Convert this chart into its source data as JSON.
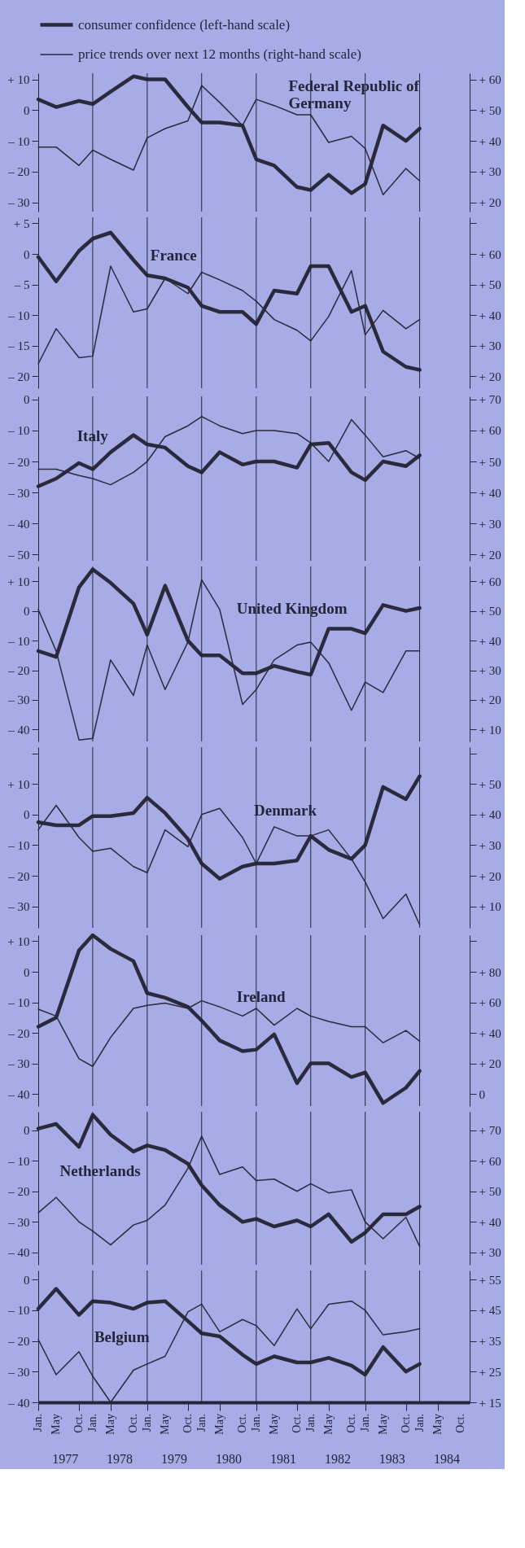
{
  "chart_data": [
    {
      "type": "line",
      "title": "Federal Republic of Germany",
      "legend": "top",
      "tick_labels": "y",
      "x": [
        "1977-01",
        "1977-05",
        "1977-10",
        "1978-01",
        "1978-05",
        "1978-10",
        "1979-01",
        "1979-05",
        "1979-10",
        "1980-01",
        "1980-05",
        "1980-10",
        "1981-01",
        "1981-05",
        "1981-10",
        "1982-01",
        "1982-05",
        "1982-10",
        "1983-01",
        "1983-05",
        "1983-10",
        "1984-01"
      ],
      "series": [
        {
          "name": "consumer confidence (left-hand scale)",
          "color": "#2a2a3c",
          "values": [
            3.5,
            1,
            3,
            2,
            6,
            11,
            10,
            10,
            1,
            -4,
            -4,
            -5,
            -16,
            -18,
            -25,
            -26,
            -21,
            -27,
            -24,
            -5,
            -10,
            -6
          ]
        },
        {
          "name": "price trends over next 12 months (right-hand scale)",
          "color": "#2a2a3c",
          "axis": "y2",
          "values": [
            38,
            38,
            32,
            37,
            34,
            30.5,
            41,
            44,
            46.5,
            58,
            52.5,
            45,
            53.5,
            51.5,
            48.5,
            48.5,
            39.5,
            41.5,
            37.5,
            22.5,
            31,
            27
          ]
        }
      ],
      "xlim": [
        "1977-01",
        "1984-12"
      ],
      "ylim": [
        -33,
        12
      ],
      "y2lim": [
        17,
        62
      ],
      "yticks": [
        {
          "value": 10,
          "label": "+ 10"
        },
        0,
        {
          "value": -10,
          "label": "– 10"
        },
        {
          "value": -20,
          "label": "– 20"
        },
        {
          "value": -30,
          "label": "– 30"
        }
      ],
      "y2ticks": [
        {
          "value": 60,
          "label": "+ 60"
        },
        {
          "value": 50,
          "label": "+ 50"
        },
        {
          "value": 40,
          "label": "+ 40"
        },
        {
          "value": 30,
          "label": "+ 30"
        },
        {
          "value": 20,
          "label": "+ 20"
        }
      ],
      "ref_lines": [
        {
          "axis": "x",
          "value": "1978-01"
        },
        {
          "axis": "x",
          "value": "1979-01"
        },
        {
          "axis": "x",
          "value": "1980-01"
        },
        {
          "axis": "x",
          "value": "1981-01"
        },
        {
          "axis": "x",
          "value": "1982-01"
        },
        {
          "axis": "x",
          "value": "1983-01"
        },
        {
          "axis": "x",
          "value": "1984-01"
        }
      ]
    },
    {
      "type": "line",
      "title": "France",
      "tick_labels": "y",
      "x": [
        "1977-01",
        "1977-05",
        "1977-10",
        "1978-01",
        "1978-05",
        "1978-10",
        "1979-01",
        "1979-05",
        "1979-10",
        "1980-01",
        "1980-05",
        "1980-10",
        "1981-01",
        "1981-05",
        "1981-10",
        "1982-01",
        "1982-05",
        "1982-10",
        "1983-01",
        "1983-05",
        "1983-10",
        "1984-01"
      ],
      "series": [
        {
          "color": "#2a2a3c",
          "values": [
            -0.5,
            -4.5,
            0.5,
            2.5,
            3.5,
            -1,
            -3.5,
            -4,
            -5.5,
            -8.5,
            -9.5,
            -9.5,
            -11.5,
            -6,
            -6.5,
            -2,
            -2,
            -9.5,
            -8.5,
            -16,
            -18.5,
            -19
          ]
        },
        {
          "color": "#2a2a3c",
          "axis": "y2",
          "values": [
            24,
            35.5,
            26,
            26.5,
            56,
            41,
            42,
            52,
            47,
            54,
            51.5,
            48,
            44.5,
            38.5,
            35,
            31.5,
            39.5,
            54.5,
            33.5,
            41.5,
            35.5,
            38.5
          ]
        }
      ],
      "xlim": [
        "1977-01",
        "1984-12"
      ],
      "ylim": [
        -22,
        6
      ],
      "y2lim": [
        16,
        72
      ],
      "yticks": [
        {
          "value": 5,
          "label": "+ 5"
        },
        0,
        {
          "value": -5,
          "label": "– 5"
        },
        {
          "value": -10,
          "label": "– 10"
        },
        {
          "value": -15,
          "label": "– 15"
        },
        {
          "value": -20,
          "label": "– 20"
        }
      ],
      "y2ticks": [
        {
          "value": 70,
          "label": null
        },
        {
          "value": 60,
          "label": "+ 60"
        },
        {
          "value": 50,
          "label": "+ 50"
        },
        {
          "value": 40,
          "label": "+ 40"
        },
        {
          "value": 30,
          "label": "+ 30"
        },
        {
          "value": 20,
          "label": "+ 20"
        }
      ],
      "ref_lines": [
        {
          "axis": "x",
          "value": "1978-01"
        },
        {
          "axis": "x",
          "value": "1979-01"
        },
        {
          "axis": "x",
          "value": "1980-01"
        },
        {
          "axis": "x",
          "value": "1981-01"
        },
        {
          "axis": "x",
          "value": "1982-01"
        },
        {
          "axis": "x",
          "value": "1983-01"
        },
        {
          "axis": "x",
          "value": "1984-01"
        }
      ]
    },
    {
      "type": "line",
      "title": "Italy",
      "tick_labels": "y",
      "x": [
        "1977-01",
        "1977-05",
        "1977-10",
        "1978-01",
        "1978-05",
        "1978-10",
        "1979-01",
        "1979-05",
        "1979-10",
        "1980-01",
        "1980-05",
        "1980-10",
        "1981-01",
        "1981-05",
        "1981-10",
        "1982-01",
        "1982-05",
        "1982-10",
        "1983-01",
        "1983-05",
        "1983-10",
        "1984-01"
      ],
      "series": [
        {
          "color": "#2a2a3c",
          "values": [
            -28,
            -25.5,
            -20.5,
            -22.5,
            -17,
            -11.5,
            -14.5,
            -15.5,
            -21.5,
            -23.5,
            -17,
            -21,
            -20,
            -20,
            -22,
            -14.5,
            -14,
            -23.5,
            -26,
            -20,
            -21.5,
            -18
          ]
        },
        {
          "color": "#2a2a3c",
          "axis": "y2",
          "values": [
            47.5,
            47.5,
            45.5,
            44.5,
            42.5,
            46.5,
            50,
            58,
            61.5,
            64.5,
            61.5,
            59,
            60,
            60,
            59,
            56,
            50,
            63.5,
            58.5,
            51.5,
            53.5,
            51
          ]
        }
      ],
      "xlim": [
        "1977-01",
        "1984-12"
      ],
      "ylim": [
        -52,
        1
      ],
      "y2lim": [
        18,
        71
      ],
      "yticks": [
        0,
        {
          "value": -10,
          "label": "– 10"
        },
        {
          "value": -20,
          "label": "– 20"
        },
        {
          "value": -30,
          "label": "– 30"
        },
        {
          "value": -40,
          "label": "– 40"
        },
        {
          "value": -50,
          "label": "– 50"
        }
      ],
      "y2ticks": [
        {
          "value": 70,
          "label": "+ 70"
        },
        {
          "value": 60,
          "label": "+ 60"
        },
        {
          "value": 50,
          "label": "+ 50"
        },
        {
          "value": 40,
          "label": "+ 40"
        },
        {
          "value": 30,
          "label": "+ 30"
        },
        {
          "value": 20,
          "label": "+ 20"
        }
      ],
      "ref_lines": [
        {
          "axis": "x",
          "value": "1978-01"
        },
        {
          "axis": "x",
          "value": "1979-01"
        },
        {
          "axis": "x",
          "value": "1980-01"
        },
        {
          "axis": "x",
          "value": "1981-01"
        },
        {
          "axis": "x",
          "value": "1982-01"
        },
        {
          "axis": "x",
          "value": "1983-01"
        },
        {
          "axis": "x",
          "value": "1984-01"
        }
      ]
    },
    {
      "type": "line",
      "title": "United Kingdom",
      "tick_labels": "y",
      "x": [
        "1977-01",
        "1977-05",
        "1977-10",
        "1978-01",
        "1978-05",
        "1978-10",
        "1979-01",
        "1979-05",
        "1979-10",
        "1980-01",
        "1980-05",
        "1980-10",
        "1981-01",
        "1981-05",
        "1981-10",
        "1982-01",
        "1982-05",
        "1982-10",
        "1983-01",
        "1983-05",
        "1983-10",
        "1984-01"
      ],
      "series": [
        {
          "color": "#2a2a3c",
          "values": [
            -13.5,
            -15.5,
            8,
            14,
            9.5,
            2.5,
            -8,
            8.5,
            -10,
            -15,
            -15,
            -21,
            -21,
            -18.5,
            -20.5,
            -21.5,
            -6,
            -6,
            -7.5,
            2,
            0,
            1
          ]
        },
        {
          "color": "#2a2a3c",
          "axis": "y2",
          "values": [
            50.5,
            36.5,
            6.5,
            7,
            33.5,
            21.5,
            38.5,
            23.5,
            39.5,
            60.5,
            50.5,
            18.5,
            23.5,
            33.5,
            38.5,
            39.5,
            32.5,
            16.5,
            26,
            22.5,
            36.5,
            36.5
          ]
        }
      ],
      "xlim": [
        "1977-01",
        "1984-12"
      ],
      "ylim": [
        -44,
        15
      ],
      "y2lim": [
        6,
        65
      ],
      "yticks": [
        {
          "value": 10,
          "label": "+ 10"
        },
        0,
        {
          "value": -10,
          "label": "– 10"
        },
        {
          "value": -20,
          "label": "– 20"
        },
        {
          "value": -30,
          "label": "– 30"
        },
        {
          "value": -40,
          "label": "– 40"
        }
      ],
      "y2ticks": [
        {
          "value": 60,
          "label": "+ 60"
        },
        {
          "value": 50,
          "label": "+ 50"
        },
        {
          "value": 40,
          "label": "+ 40"
        },
        {
          "value": 30,
          "label": "+ 30"
        },
        {
          "value": 20,
          "label": "+ 20"
        },
        {
          "value": 10,
          "label": "+ 10"
        }
      ],
      "ref_lines": [
        {
          "axis": "x",
          "value": "1978-01"
        },
        {
          "axis": "x",
          "value": "1979-01"
        },
        {
          "axis": "x",
          "value": "1980-01"
        },
        {
          "axis": "x",
          "value": "1981-01"
        },
        {
          "axis": "x",
          "value": "1982-01"
        },
        {
          "axis": "x",
          "value": "1983-01"
        },
        {
          "axis": "x",
          "value": "1984-01"
        }
      ]
    },
    {
      "type": "line",
      "title": "Denmark",
      "tick_labels": "y",
      "x": [
        "1977-01",
        "1977-05",
        "1977-10",
        "1978-01",
        "1978-05",
        "1978-10",
        "1979-01",
        "1979-05",
        "1979-10",
        "1980-01",
        "1980-05",
        "1980-10",
        "1981-01",
        "1981-05",
        "1981-10",
        "1982-01",
        "1982-05",
        "1982-10",
        "1983-01",
        "1983-05",
        "1983-10",
        "1984-01"
      ],
      "series": [
        {
          "color": "#2a2a3c",
          "values": [
            -2.5,
            -3.5,
            -3.5,
            -0.5,
            -0.5,
            0.5,
            5.5,
            0.5,
            -8,
            -16,
            -21,
            -17,
            -16,
            -16,
            -15,
            -7,
            -11.5,
            -14.5,
            -10,
            9,
            5,
            12.5
          ]
        },
        {
          "color": "#2a2a3c",
          "axis": "y2",
          "values": [
            35,
            43,
            32.5,
            28,
            29,
            23,
            21,
            35,
            29.5,
            40,
            42,
            32.5,
            24,
            36,
            33,
            33,
            35,
            25.5,
            18,
            6,
            14,
            4
          ]
        }
      ],
      "xlim": [
        "1977-01",
        "1984-12"
      ],
      "ylim": [
        -37,
        22
      ],
      "y2lim": [
        3,
        62
      ],
      "yticks": [
        {
          "value": 20,
          "label": null
        },
        {
          "value": 10,
          "label": "+ 10"
        },
        0,
        {
          "value": -10,
          "label": "– 10"
        },
        {
          "value": -20,
          "label": "– 20"
        },
        {
          "value": -30,
          "label": "– 30"
        }
      ],
      "y2ticks": [
        {
          "value": 60,
          "label": null
        },
        {
          "value": 50,
          "label": "+ 50"
        },
        {
          "value": 40,
          "label": "+ 40"
        },
        {
          "value": 30,
          "label": "+ 30"
        },
        {
          "value": 20,
          "label": "+ 20"
        },
        {
          "value": 10,
          "label": "+ 10"
        }
      ],
      "ref_lines": [
        {
          "axis": "x",
          "value": "1978-01"
        },
        {
          "axis": "x",
          "value": "1979-01"
        },
        {
          "axis": "x",
          "value": "1980-01"
        },
        {
          "axis": "x",
          "value": "1981-01"
        },
        {
          "axis": "x",
          "value": "1982-01"
        },
        {
          "axis": "x",
          "value": "1983-01"
        },
        {
          "axis": "x",
          "value": "1984-01"
        }
      ]
    },
    {
      "type": "line",
      "title": "Ireland",
      "tick_labels": "y",
      "x": [
        "1977-01",
        "1977-05",
        "1977-10",
        "1978-01",
        "1978-05",
        "1978-10",
        "1979-01",
        "1979-05",
        "1979-10",
        "1980-01",
        "1980-05",
        "1980-10",
        "1981-01",
        "1981-05",
        "1981-10",
        "1982-01",
        "1982-05",
        "1982-10",
        "1983-01",
        "1983-05",
        "1983-10",
        "1984-01"
      ],
      "series": [
        {
          "color": "#2a2a3c",
          "values": [
            -18,
            -15,
            7,
            12,
            7.5,
            3.5,
            -7,
            -8.5,
            -11.5,
            -16,
            -22.5,
            -26,
            -25.5,
            -20.5,
            -36.5,
            -30,
            -30,
            -34.5,
            -33,
            -43,
            -38,
            -32.5
          ]
        },
        {
          "color": "#2a2a3c",
          "axis": "y2",
          "values": [
            55.5,
            51,
            23,
            18,
            37,
            56,
            58,
            59.5,
            56,
            61,
            57,
            51,
            56,
            45,
            56,
            51,
            47.5,
            44,
            44,
            33.5,
            41.5,
            34.5
          ]
        }
      ],
      "xlim": [
        "1977-01",
        "1984-12"
      ],
      "ylim": [
        -44,
        12
      ],
      "y2lim": [
        -8,
        104
      ],
      "yticks": [
        {
          "value": 10,
          "label": "+ 10"
        },
        0,
        {
          "value": -10,
          "label": "– 10"
        },
        {
          "value": -20,
          "label": "– 20"
        },
        {
          "value": -30,
          "label": "– 30"
        },
        {
          "value": -40,
          "label": "– 40"
        }
      ],
      "y2ticks": [
        {
          "value": 100,
          "label": null
        },
        {
          "value": 80,
          "label": "+ 80"
        },
        {
          "value": 60,
          "label": "+ 60"
        },
        {
          "value": 40,
          "label": "+ 40"
        },
        {
          "value": 20,
          "label": "+ 20"
        },
        0
      ],
      "ref_lines": [
        {
          "axis": "x",
          "value": "1978-01"
        },
        {
          "axis": "x",
          "value": "1979-01"
        },
        {
          "axis": "x",
          "value": "1980-01"
        },
        {
          "axis": "x",
          "value": "1981-01"
        },
        {
          "axis": "x",
          "value": "1982-01"
        },
        {
          "axis": "x",
          "value": "1983-01"
        },
        {
          "axis": "x",
          "value": "1984-01"
        }
      ]
    },
    {
      "type": "line",
      "title": "Netherlands",
      "tick_labels": "y",
      "x": [
        "1977-01",
        "1977-05",
        "1977-10",
        "1978-01",
        "1978-05",
        "1978-10",
        "1979-01",
        "1979-05",
        "1979-10",
        "1980-01",
        "1980-05",
        "1980-10",
        "1981-01",
        "1981-05",
        "1981-10",
        "1982-01",
        "1982-05",
        "1982-10",
        "1983-01",
        "1983-05",
        "1983-10",
        "1984-01"
      ],
      "series": [
        {
          "color": "#2a2a3c",
          "values": [
            0.5,
            2,
            -5.5,
            5,
            -1.5,
            -7,
            -5,
            -6.5,
            -11,
            -18,
            -24.5,
            -30,
            -29,
            -31.5,
            -29.5,
            -31.5,
            -27.5,
            -36.5,
            -33.5,
            -27.5,
            -27.5,
            -25
          ]
        },
        {
          "color": "#2a2a3c",
          "axis": "y2",
          "values": [
            43,
            48,
            40,
            37,
            32.5,
            39,
            40.5,
            45.5,
            57.5,
            68,
            55.5,
            58,
            53.5,
            54,
            50,
            52.5,
            49.5,
            50.5,
            40,
            34.5,
            41.5,
            32
          ]
        }
      ],
      "xlim": [
        "1977-01",
        "1984-12"
      ],
      "ylim": [
        -44,
        6
      ],
      "y2lim": [
        26,
        76
      ],
      "yticks": [
        0,
        {
          "value": -10,
          "label": "– 10"
        },
        {
          "value": -20,
          "label": "– 20"
        },
        {
          "value": -30,
          "label": "– 30"
        },
        {
          "value": -40,
          "label": "– 40"
        }
      ],
      "y2ticks": [
        {
          "value": 70,
          "label": "+ 70"
        },
        {
          "value": 60,
          "label": "+ 60"
        },
        {
          "value": 50,
          "label": "+ 50"
        },
        {
          "value": 40,
          "label": "+ 40"
        },
        {
          "value": 30,
          "label": "+ 30"
        }
      ],
      "ref_lines": [
        {
          "axis": "x",
          "value": "1978-01"
        },
        {
          "axis": "x",
          "value": "1979-01"
        },
        {
          "axis": "x",
          "value": "1980-01"
        },
        {
          "axis": "x",
          "value": "1981-01"
        },
        {
          "axis": "x",
          "value": "1982-01"
        },
        {
          "axis": "x",
          "value": "1983-01"
        },
        {
          "axis": "x",
          "value": "1984-01"
        }
      ]
    },
    {
      "type": "line",
      "title": "Belgium",
      "x": [
        "1977-01",
        "1977-05",
        "1977-10",
        "1978-01",
        "1978-05",
        "1978-10",
        "1979-01",
        "1979-05",
        "1979-10",
        "1980-01",
        "1980-05",
        "1980-10",
        "1981-01",
        "1981-05",
        "1981-10",
        "1982-01",
        "1982-05",
        "1982-10",
        "1983-01",
        "1983-05",
        "1983-10",
        "1984-01"
      ],
      "series": [
        {
          "color": "#2a2a3c",
          "values": [
            -9.5,
            -3,
            -11.5,
            -7,
            -7.5,
            -9.5,
            -7.5,
            -7,
            -13.5,
            -17.5,
            -18.5,
            -24.5,
            -27.5,
            -25,
            -27,
            -27,
            -25.5,
            -28,
            -31,
            -22,
            -30,
            -27.5
          ]
        },
        {
          "color": "#2a2a3c",
          "axis": "y2",
          "values": [
            35.5,
            24,
            31.5,
            23.5,
            15,
            25.5,
            27.5,
            30,
            44.5,
            47,
            38,
            42,
            40,
            33.5,
            45.5,
            39,
            47,
            48,
            45,
            37,
            38,
            39
          ]
        }
      ],
      "xlim": [
        "1977-01",
        "1984-12"
      ],
      "ylim": [
        -40,
        3
      ],
      "y2lim": [
        15,
        58
      ],
      "yticks": [
        0,
        {
          "value": -10,
          "label": "– 10"
        },
        {
          "value": -20,
          "label": "– 20"
        },
        {
          "value": -30,
          "label": "– 30"
        },
        {
          "value": -40,
          "label": "– 40"
        }
      ],
      "y2ticks": [
        {
          "value": 55,
          "label": "+ 55"
        },
        {
          "value": 45,
          "label": "+ 45"
        },
        {
          "value": 35,
          "label": "+ 35"
        },
        {
          "value": 25,
          "label": "+ 25"
        },
        {
          "value": 15,
          "label": "+ 15"
        }
      ],
      "xticks": [
        {
          "value": "1977-01",
          "label": "Jan."
        },
        {
          "value": "1977-05",
          "label": "May"
        },
        {
          "value": "1977-10",
          "label": "Oct."
        },
        {
          "value": "1978-01",
          "label": "Jan."
        },
        {
          "value": "1978-05",
          "label": "May"
        },
        {
          "value": "1978-10",
          "label": "Oct."
        },
        {
          "value": "1979-01",
          "label": "Jan."
        },
        {
          "value": "1979-05",
          "label": "May"
        },
        {
          "value": "1979-10",
          "label": "Oct."
        },
        {
          "value": "1980-01",
          "label": "Jan."
        },
        {
          "value": "1980-05",
          "label": "May"
        },
        {
          "value": "1980-10",
          "label": "Oct."
        },
        {
          "value": "1981-01",
          "label": "Jan."
        },
        {
          "value": "1981-05",
          "label": "May"
        },
        {
          "value": "1981-10",
          "label": "Oct."
        },
        {
          "value": "1982-01",
          "label": "Jan."
        },
        {
          "value": "1982-05",
          "label": "May"
        },
        {
          "value": "1982-10",
          "label": "Oct."
        },
        {
          "value": "1983-01",
          "label": "Jan."
        },
        {
          "value": "1983-05",
          "label": "May"
        },
        {
          "value": "1983-10",
          "label": "Oct."
        },
        {
          "value": "1984-01",
          "label": "Jan."
        },
        {
          "value": "1984-05",
          "label": "May"
        },
        {
          "value": "1984-10",
          "label": "Oct."
        }
      ],
      "annotations": [
        "1977",
        "1978",
        "1979",
        "1980",
        "1981",
        "1982",
        "1983",
        "1984"
      ],
      "ref_lines": [
        {
          "axis": "x",
          "value": "1978-01"
        },
        {
          "axis": "x",
          "value": "1979-01"
        },
        {
          "axis": "x",
          "value": "1980-01"
        },
        {
          "axis": "x",
          "value": "1981-01"
        },
        {
          "axis": "x",
          "value": "1982-01"
        },
        {
          "axis": "x",
          "value": "1983-01"
        },
        {
          "axis": "x",
          "value": "1984-01"
        }
      ]
    }
  ]
}
